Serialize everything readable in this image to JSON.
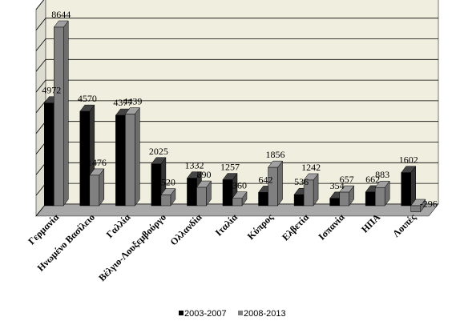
{
  "chart_data": {
    "type": "bar",
    "title": "",
    "xlabel": "",
    "ylabel": "",
    "categories": [
      "Γερμανία",
      "Ηνωμένο Βασίλειο",
      "Γαλλία",
      "Βέλγιο-Λουξεμβούργο",
      "Ολλανδία",
      "Ιταλία",
      "Κύπρος",
      "Ελβετία",
      "Ισπανία",
      "ΗΠΑ",
      "Λοιπές"
    ],
    "series": [
      {
        "name": "2003-2007",
        "color": "#000000",
        "values": [
          4972,
          4570,
          4377,
          2025,
          1332,
          1257,
          642,
          536,
          354,
          662,
          1602
        ]
      },
      {
        "name": "2008-2013",
        "color": "#808080",
        "values": [
          8644,
          1476,
          4439,
          520,
          890,
          360,
          1856,
          1242,
          657,
          883,
          -296
        ]
      }
    ],
    "value_labels": [
      [
        "4972",
        "4570",
        "4377",
        "2025",
        "1332",
        "1257",
        "642",
        "536",
        "354",
        "662",
        "1602"
      ],
      [
        "8644",
        "1476",
        "4439",
        "520",
        "890",
        "360",
        "1856",
        "1242",
        "657",
        "883",
        "-296"
      ]
    ],
    "ylim": [
      -500,
      9500
    ],
    "grid": true,
    "legend": "bottom",
    "colors": {
      "wall": "#f0efdf",
      "floor": "#a8a8a8",
      "grid": "#000000"
    }
  }
}
